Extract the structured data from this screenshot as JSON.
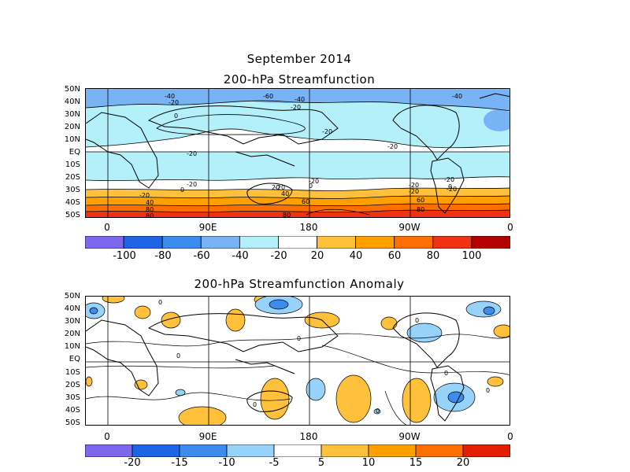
{
  "header": {
    "title": "September 2014",
    "subtitle": "200-hPa Streamfunction"
  },
  "anomaly": {
    "title": "200-hPa Streamfunction Anomaly"
  },
  "axes": {
    "lat_labels": [
      "50N",
      "40N",
      "30N",
      "20N",
      "10N",
      "EQ",
      "10S",
      "20S",
      "30S",
      "40S",
      "50S"
    ],
    "lon_labels": [
      "0",
      "90E",
      "180",
      "90W",
      "0"
    ]
  },
  "colorbar_top": {
    "labels": [
      "-100",
      "-80",
      "-60",
      "-40",
      "-20",
      "20",
      "40",
      "60",
      "80",
      "100"
    ],
    "colors": [
      "#7b68ee",
      "#1e64e6",
      "#3c8cf0",
      "#78b4f5",
      "#b4f0fa",
      "#ffffff",
      "#ffc03c",
      "#ffa000",
      "#ff6e00",
      "#f03214",
      "#b40000"
    ]
  },
  "colorbar_bottom": {
    "labels": [
      "-20",
      "-15",
      "-10",
      "-5",
      "5",
      "10",
      "15",
      "20"
    ],
    "colors": [
      "#7b68ee",
      "#1e64e6",
      "#3c8cf0",
      "#96d2fa",
      "#ffffff",
      "#ffc03c",
      "#ffa000",
      "#ff6e00",
      "#e61e00"
    ]
  },
  "contour_labels_top": [
    "-40",
    "-20",
    "-60",
    "-40",
    "-20",
    "-40",
    "0",
    "-20",
    "-20",
    "-20",
    "-20",
    "-20",
    "0",
    "-20",
    "-20",
    "0",
    "-20",
    "-20",
    "-20",
    "40",
    "20",
    "-20",
    "0",
    "60",
    "40",
    "60",
    "80",
    "80",
    "80",
    "80"
  ],
  "contour_labels_bottom": [
    "0",
    "0",
    "0",
    "0",
    "0",
    "0",
    "0",
    "0"
  ]
}
